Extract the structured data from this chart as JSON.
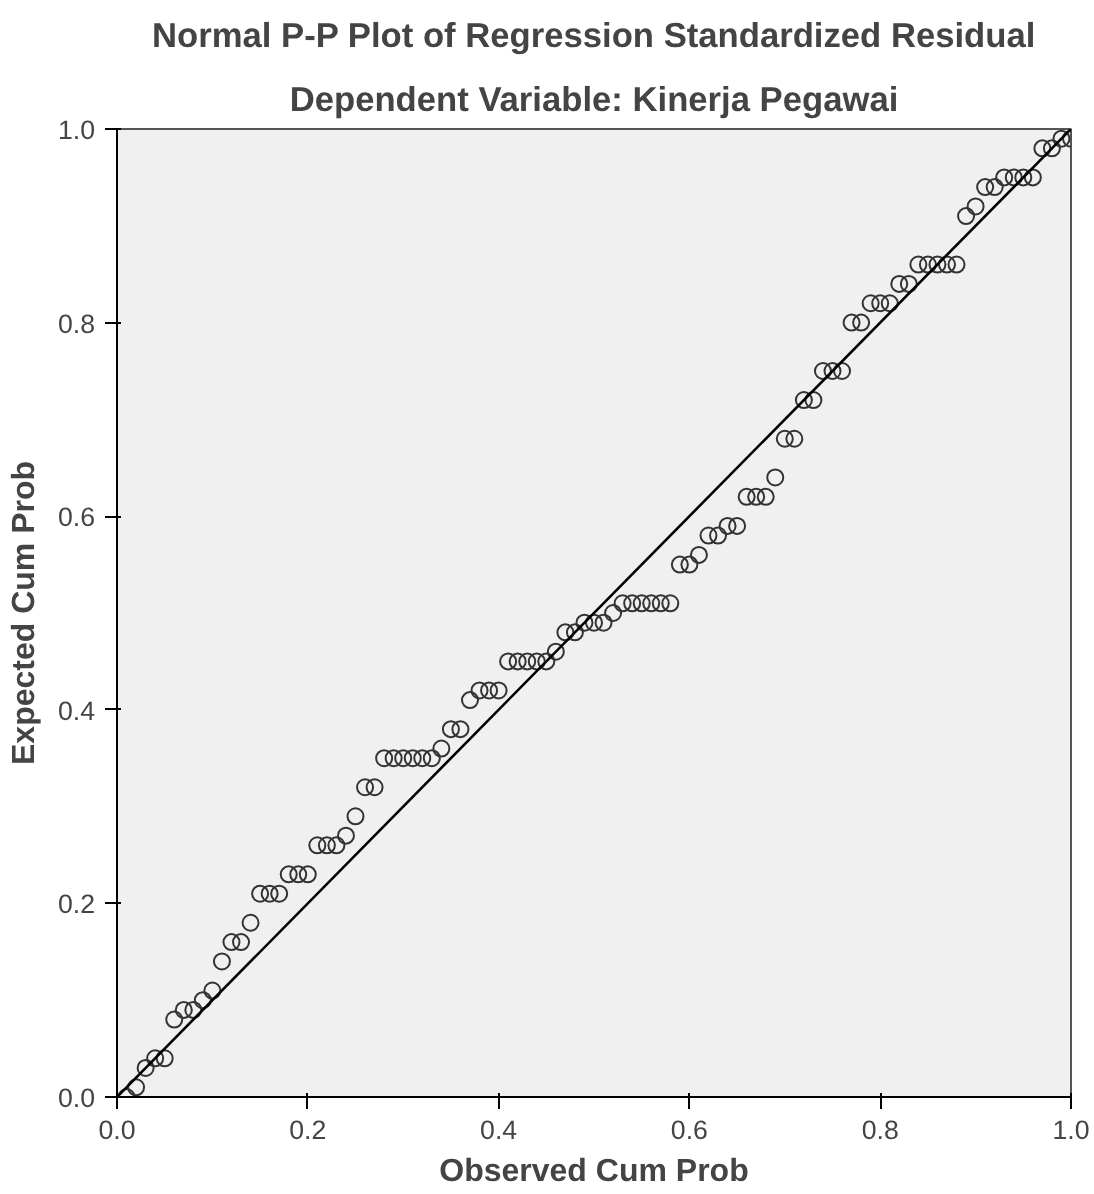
{
  "chart_data": {
    "type": "scatter",
    "title": "Normal P-P Plot of Regression Standardized Residual",
    "subtitle": "Dependent Variable: Kinerja Pegawai",
    "xlabel": "Observed Cum Prob",
    "ylabel": "Expected Cum Prob",
    "xlim": [
      0,
      1
    ],
    "ylim": [
      0,
      1
    ],
    "xticks": [
      {
        "value": 0,
        "label": "0.0"
      },
      {
        "value": 0.2,
        "label": "0.2"
      },
      {
        "value": 0.4,
        "label": "0.4"
      },
      {
        "value": 0.6,
        "label": "0.6"
      },
      {
        "value": 0.8,
        "label": "0.8"
      },
      {
        "value": 1,
        "label": "1.0"
      }
    ],
    "yticks": [
      {
        "value": 0,
        "label": "0.0"
      },
      {
        "value": 0.2,
        "label": "0.2"
      },
      {
        "value": 0.4,
        "label": "0.4"
      },
      {
        "value": 0.6,
        "label": "0.6"
      },
      {
        "value": 0.8,
        "label": "0.8"
      },
      {
        "value": 1,
        "label": "1.0"
      }
    ],
    "grid": false,
    "series": [
      {
        "marker": "circle",
        "color": "#333333",
        "x": [
          0.01,
          0.02,
          0.03,
          0.04,
          0.05,
          0.06,
          0.07,
          0.08,
          0.09,
          0.1,
          0.11,
          0.12,
          0.13,
          0.14,
          0.15,
          0.16,
          0.17,
          0.18,
          0.19,
          0.2,
          0.21,
          0.22,
          0.23,
          0.24,
          0.25,
          0.26,
          0.27,
          0.28,
          0.29,
          0.3,
          0.31,
          0.32,
          0.33,
          0.34,
          0.35,
          0.36,
          0.37,
          0.38,
          0.39,
          0.4,
          0.41,
          0.42,
          0.43,
          0.44,
          0.45,
          0.46,
          0.47,
          0.48,
          0.49,
          0.5,
          0.51,
          0.52,
          0.53,
          0.54,
          0.55,
          0.56,
          0.57,
          0.58,
          0.59,
          0.6,
          0.61,
          0.62,
          0.63,
          0.64,
          0.65,
          0.66,
          0.67,
          0.68,
          0.69,
          0.7,
          0.71,
          0.72,
          0.73,
          0.74,
          0.75,
          0.76,
          0.77,
          0.78,
          0.79,
          0.8,
          0.81,
          0.82,
          0.83,
          0.84,
          0.85,
          0.86,
          0.87,
          0.88,
          0.89,
          0.9,
          0.91,
          0.92,
          0.93,
          0.94,
          0.95,
          0.96,
          0.97,
          0.98,
          0.99,
          1.0
        ],
        "values": [
          0.0,
          0.01,
          0.03,
          0.04,
          0.04,
          0.08,
          0.09,
          0.09,
          0.1,
          0.11,
          0.14,
          0.16,
          0.16,
          0.18,
          0.21,
          0.21,
          0.21,
          0.23,
          0.23,
          0.23,
          0.26,
          0.26,
          0.26,
          0.27,
          0.29,
          0.32,
          0.32,
          0.35,
          0.35,
          0.35,
          0.35,
          0.35,
          0.35,
          0.36,
          0.38,
          0.38,
          0.41,
          0.42,
          0.42,
          0.42,
          0.45,
          0.45,
          0.45,
          0.45,
          0.45,
          0.46,
          0.48,
          0.48,
          0.49,
          0.49,
          0.49,
          0.5,
          0.51,
          0.51,
          0.51,
          0.51,
          0.51,
          0.51,
          0.55,
          0.55,
          0.56,
          0.58,
          0.58,
          0.59,
          0.59,
          0.62,
          0.62,
          0.62,
          0.64,
          0.68,
          0.68,
          0.72,
          0.72,
          0.75,
          0.75,
          0.75,
          0.8,
          0.8,
          0.82,
          0.82,
          0.82,
          0.84,
          0.84,
          0.86,
          0.86,
          0.86,
          0.86,
          0.86,
          0.91,
          0.92,
          0.94,
          0.94,
          0.95,
          0.95,
          0.95,
          0.95,
          0.98,
          0.98,
          0.99,
          0.99
        ]
      },
      {
        "type": "line",
        "color": "#000000",
        "x": [
          0,
          1
        ],
        "values": [
          0,
          1
        ],
        "line_style": "solid"
      }
    ]
  }
}
